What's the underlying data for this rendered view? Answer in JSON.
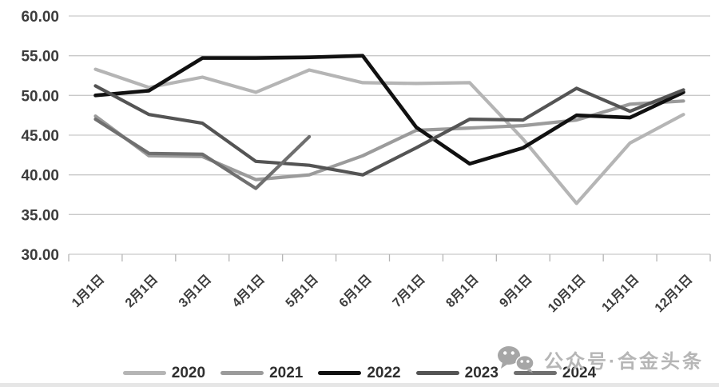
{
  "chart_data": {
    "type": "line",
    "title": "",
    "xlabel": "",
    "ylabel": "",
    "grid": true,
    "legend_position": "bottom",
    "ylim": [
      30,
      60
    ],
    "y_tick_labels": [
      "60.00",
      "55.00",
      "50.00",
      "45.00",
      "40.00",
      "35.00",
      "30.00"
    ],
    "categories": [
      "1月1日",
      "2月1日",
      "3月1日",
      "4月1日",
      "5月1日",
      "6月1日",
      "7月1日",
      "8月1日",
      "9月1日",
      "10月1日",
      "11月1日",
      "12月1日"
    ],
    "series": [
      {
        "name": "2020",
        "color": "#b5b5b5",
        "values": [
          53.3,
          51.0,
          52.3,
          50.4,
          53.2,
          51.6,
          51.5,
          51.6,
          44.5,
          36.4,
          44.0,
          47.6
        ]
      },
      {
        "name": "2021",
        "color": "#9b9b9b",
        "values": [
          47.4,
          42.4,
          42.3,
          39.4,
          40.0,
          42.4,
          45.6,
          45.9,
          46.2,
          46.9,
          48.9,
          49.3
        ]
      },
      {
        "name": "2022",
        "color": "#111111",
        "values": [
          50.0,
          50.6,
          54.7,
          54.7,
          54.8,
          55.0,
          46.0,
          41.4,
          43.4,
          47.5,
          47.2,
          50.4
        ]
      },
      {
        "name": "2023",
        "color": "#545454",
        "values": [
          51.2,
          47.6,
          46.5,
          41.7,
          41.2,
          40.0,
          43.4,
          47.0,
          46.9,
          50.9,
          48.0,
          50.7
        ]
      },
      {
        "name": "2024",
        "color": "#6f6f6f",
        "values": [
          47.0,
          42.7,
          42.6,
          38.3,
          44.8,
          null,
          null,
          null,
          null,
          null,
          null,
          null
        ]
      }
    ],
    "grid_color": "#c9c9c9"
  },
  "watermark": {
    "icon": "wechat-icon",
    "text": "公众号·合金头条"
  }
}
